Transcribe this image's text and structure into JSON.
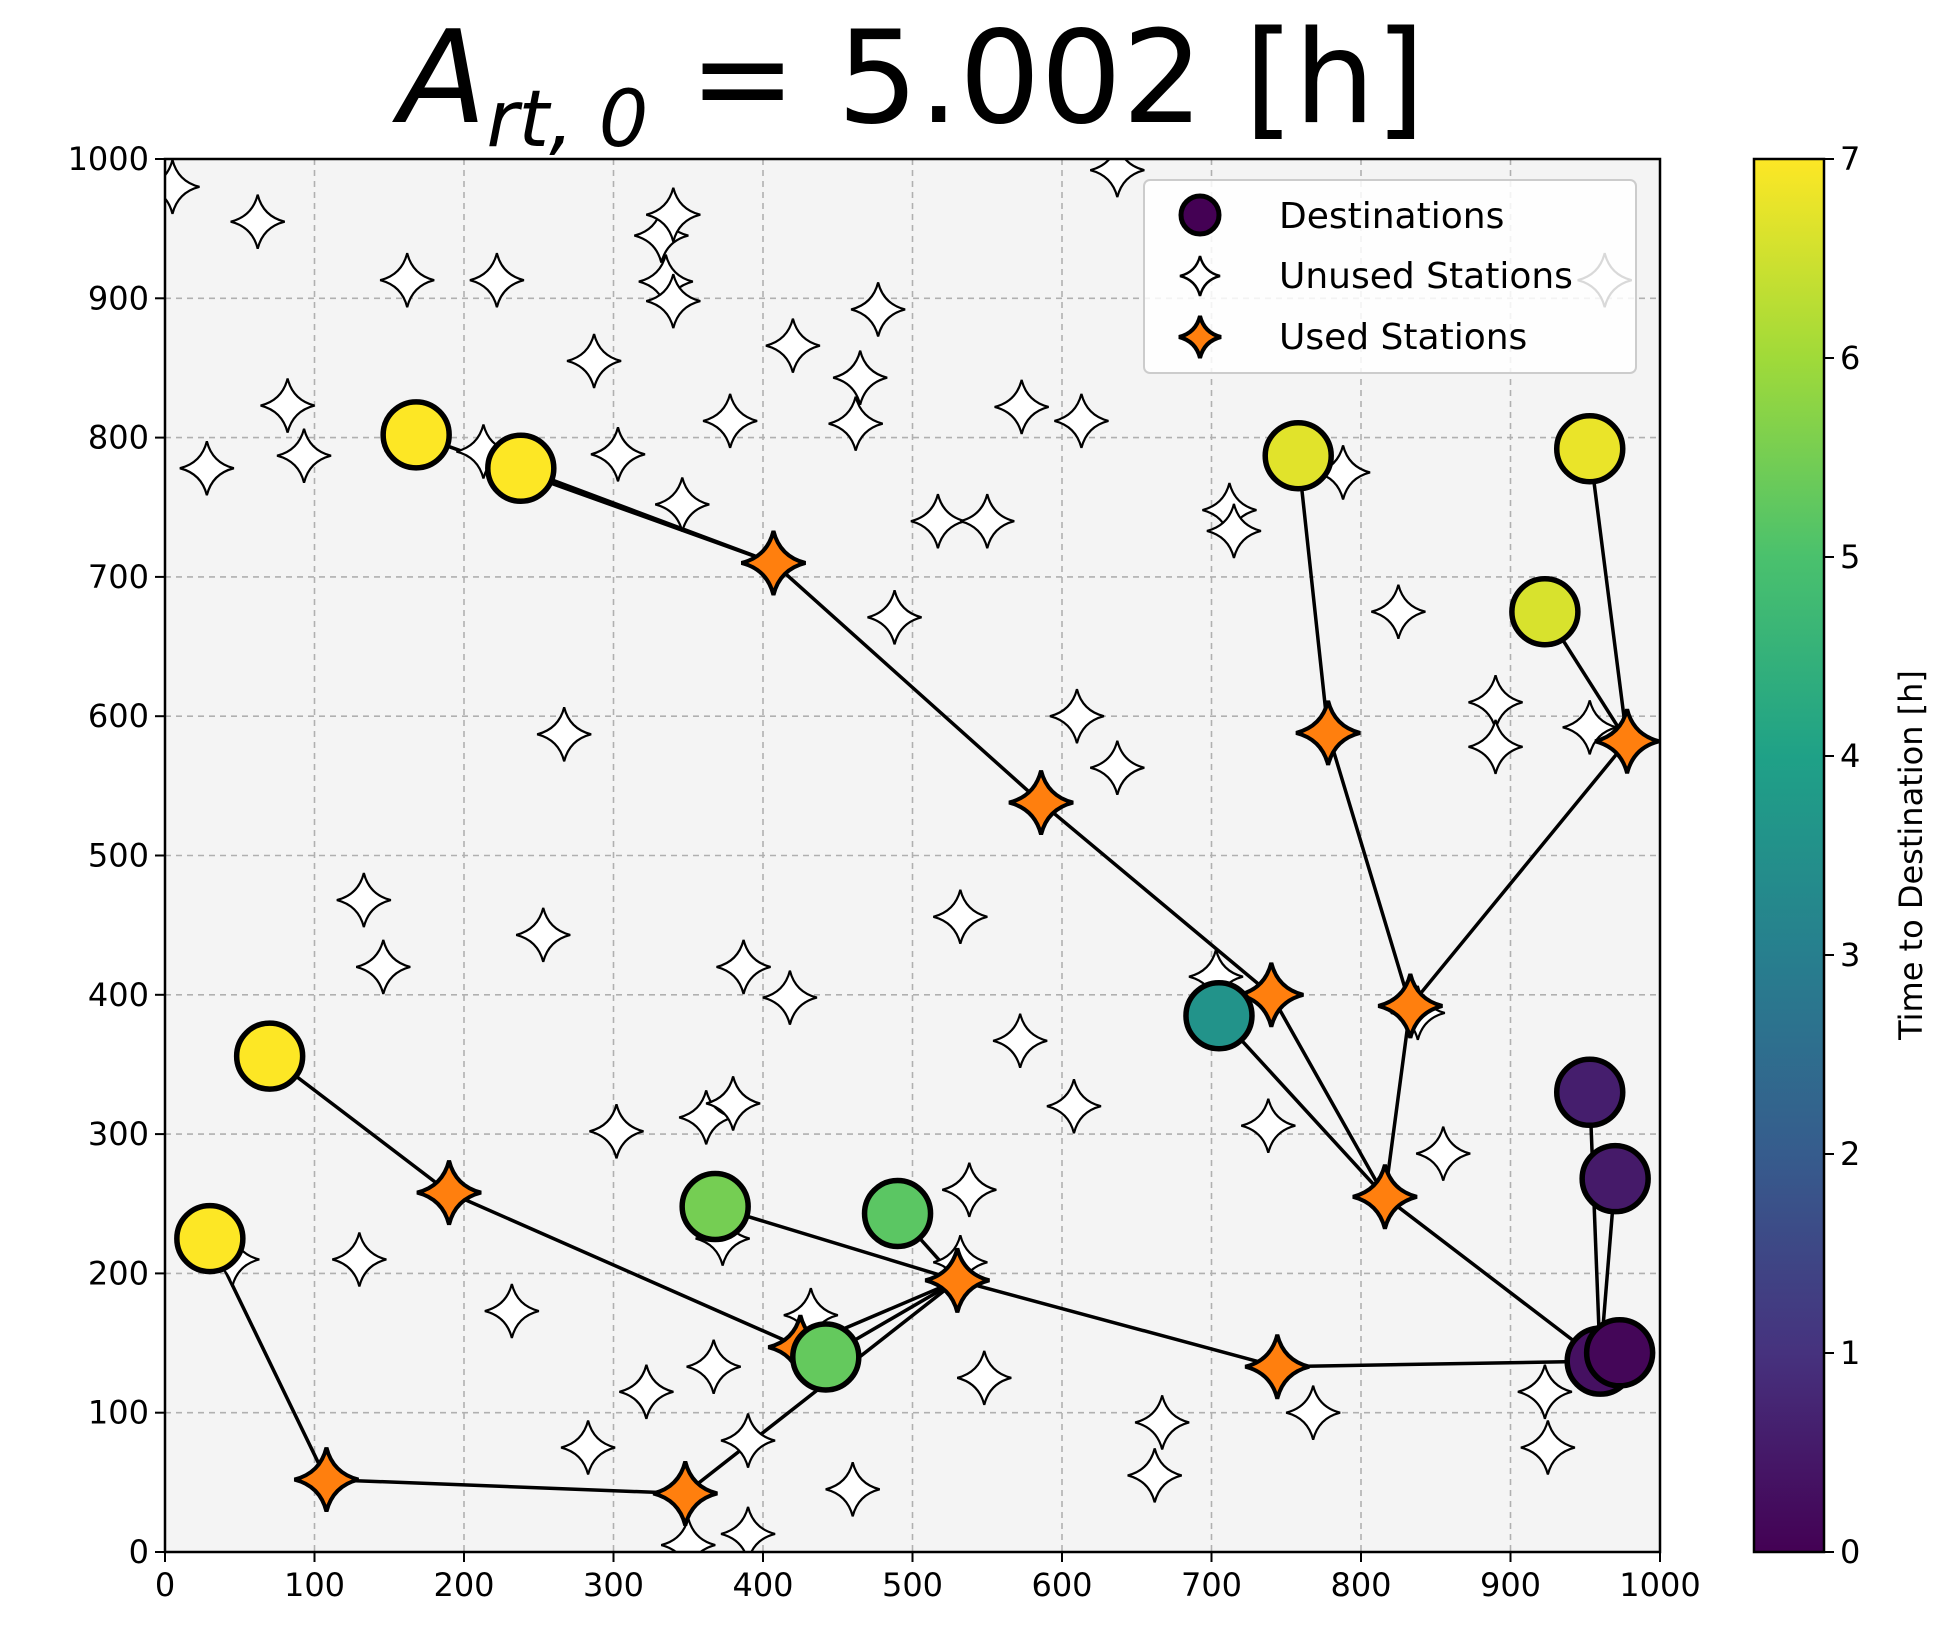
{
  "chart_data": {
    "type": "scatter",
    "title_base": "A",
    "title_subscript": "rt, 0",
    "title_rest": " = 5.002 [h]",
    "xlim": [
      0,
      1000
    ],
    "ylim": [
      0,
      1000
    ],
    "xticks": [
      0,
      100,
      200,
      300,
      400,
      500,
      600,
      700,
      800,
      900,
      1000
    ],
    "yticks": [
      0,
      100,
      200,
      300,
      400,
      500,
      600,
      700,
      800,
      900,
      1000
    ],
    "grid": true,
    "legend_position": "top-right",
    "legend": {
      "destinations": "Destinations",
      "unused": "Unused Stations",
      "used": "Used Stations"
    },
    "colorbar": {
      "label": "Time to Destination [h]",
      "colormap": "viridis",
      "range": [
        0,
        7
      ],
      "ticks": [
        0,
        1,
        2,
        3,
        4,
        5,
        6,
        7
      ]
    },
    "colors": {
      "used_station": "#ff7f0e",
      "plot_background": "#f4f4f4",
      "route_line": "#000000"
    },
    "unused_stations": [
      [
        5,
        980
      ],
      [
        62,
        955
      ],
      [
        28,
        778
      ],
      [
        82,
        823
      ],
      [
        93,
        787
      ],
      [
        162,
        913
      ],
      [
        222,
        913
      ],
      [
        213,
        790
      ],
      [
        287,
        855
      ],
      [
        303,
        788
      ],
      [
        332,
        945
      ],
      [
        335,
        912
      ],
      [
        340,
        960
      ],
      [
        340,
        898
      ],
      [
        378,
        812
      ],
      [
        346,
        752
      ],
      [
        420,
        866
      ],
      [
        477,
        892
      ],
      [
        465,
        843
      ],
      [
        462,
        810
      ],
      [
        573,
        822
      ],
      [
        613,
        812
      ],
      [
        517,
        740
      ],
      [
        550,
        740
      ],
      [
        488,
        671
      ],
      [
        267,
        587
      ],
      [
        610,
        600
      ],
      [
        637,
        563
      ],
      [
        712,
        748
      ],
      [
        715,
        733
      ],
      [
        788,
        775
      ],
      [
        825,
        675
      ],
      [
        890,
        610
      ],
      [
        890,
        578
      ],
      [
        963,
        913
      ],
      [
        637,
        992
      ],
      [
        953,
        592
      ],
      [
        133,
        468
      ],
      [
        146,
        420
      ],
      [
        253,
        443
      ],
      [
        532,
        456
      ],
      [
        387,
        420
      ],
      [
        418,
        398
      ],
      [
        572,
        367
      ],
      [
        608,
        320
      ],
      [
        703,
        413
      ],
      [
        738,
        306
      ],
      [
        855,
        286
      ],
      [
        838,
        387
      ],
      [
        302,
        302
      ],
      [
        362,
        312
      ],
      [
        380,
        322
      ],
      [
        130,
        210
      ],
      [
        45,
        210
      ],
      [
        232,
        173
      ],
      [
        373,
        225
      ],
      [
        538,
        260
      ],
      [
        532,
        208
      ],
      [
        432,
        170
      ],
      [
        322,
        115
      ],
      [
        367,
        133
      ],
      [
        283,
        75
      ],
      [
        390,
        80
      ],
      [
        460,
        45
      ],
      [
        548,
        125
      ],
      [
        667,
        93
      ],
      [
        662,
        55
      ],
      [
        768,
        100
      ],
      [
        923,
        115
      ],
      [
        925,
        75
      ],
      [
        350,
        5
      ],
      [
        390,
        13
      ]
    ],
    "used_stations": [
      [
        407,
        710
      ],
      [
        586,
        538
      ],
      [
        778,
        588
      ],
      [
        978,
        582
      ],
      [
        740,
        400
      ],
      [
        833,
        392
      ],
      [
        816,
        255
      ],
      [
        744,
        133
      ],
      [
        530,
        195
      ],
      [
        425,
        147
      ],
      [
        190,
        258
      ],
      [
        108,
        52
      ],
      [
        348,
        42
      ]
    ],
    "routes": [
      [
        [
          168,
          802
        ],
        [
          407,
          710
        ],
        [
          586,
          538
        ],
        [
          740,
          400
        ],
        [
          816,
          255
        ],
        [
          960,
          137
        ]
      ],
      [
        [
          238,
          778
        ],
        [
          407,
          710
        ]
      ],
      [
        [
          758,
          787
        ],
        [
          778,
          588
        ],
        [
          833,
          392
        ],
        [
          816,
          255
        ]
      ],
      [
        [
          953,
          792
        ],
        [
          978,
          582
        ],
        [
          833,
          392
        ]
      ],
      [
        [
          923,
          675
        ],
        [
          978,
          582
        ]
      ],
      [
        [
          705,
          385
        ],
        [
          816,
          255
        ]
      ],
      [
        [
          70,
          356
        ],
        [
          190,
          258
        ],
        [
          425,
          147
        ],
        [
          530,
          195
        ]
      ],
      [
        [
          30,
          225
        ],
        [
          108,
          52
        ],
        [
          348,
          42
        ],
        [
          530,
          195
        ]
      ],
      [
        [
          368,
          248
        ],
        [
          530,
          195
        ]
      ],
      [
        [
          490,
          243
        ],
        [
          530,
          195
        ]
      ],
      [
        [
          442,
          140
        ],
        [
          530,
          195
        ]
      ],
      [
        [
          530,
          195
        ],
        [
          744,
          133
        ],
        [
          960,
          137
        ]
      ],
      [
        [
          953,
          330
        ],
        [
          960,
          137
        ]
      ],
      [
        [
          970,
          268
        ],
        [
          960,
          137
        ]
      ]
    ],
    "destinations": [
      {
        "x": 168,
        "y": 802,
        "time": 7.0
      },
      {
        "x": 238,
        "y": 778,
        "time": 7.0
      },
      {
        "x": 758,
        "y": 787,
        "time": 6.7
      },
      {
        "x": 953,
        "y": 792,
        "time": 6.8
      },
      {
        "x": 923,
        "y": 675,
        "time": 6.6
      },
      {
        "x": 70,
        "y": 356,
        "time": 7.0
      },
      {
        "x": 30,
        "y": 225,
        "time": 7.0
      },
      {
        "x": 705,
        "y": 385,
        "time": 3.6
      },
      {
        "x": 368,
        "y": 248,
        "time": 5.5
      },
      {
        "x": 490,
        "y": 243,
        "time": 5.2
      },
      {
        "x": 442,
        "y": 140,
        "time": 5.3
      },
      {
        "x": 953,
        "y": 330,
        "time": 0.6
      },
      {
        "x": 970,
        "y": 268,
        "time": 0.5
      },
      {
        "x": 960,
        "y": 137,
        "time": 0.3
      },
      {
        "x": 973,
        "y": 143,
        "time": 0.1
      }
    ]
  }
}
